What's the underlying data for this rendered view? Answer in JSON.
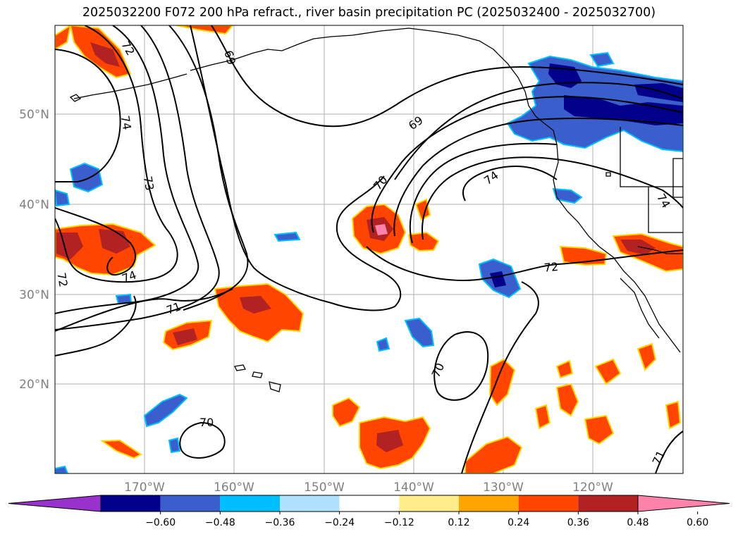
{
  "title": "2025032200 F072 200 hPa refract., river basin precipitation PC (2025032400 - 2025032700)",
  "lat_labels": [
    "50°N",
    "40°N",
    "30°N",
    "20°N"
  ],
  "lon_labels": [
    "170°W",
    "160°W",
    "150°W",
    "140°W",
    "130°W",
    "120°W"
  ],
  "contour_labels": [
    "72",
    "74",
    "73",
    "72",
    "74",
    "71",
    "69",
    "70",
    "69",
    "74",
    "74",
    "72",
    "70",
    "70",
    "71"
  ],
  "colorbar": {
    "colors": [
      "#9932cc",
      "#00008b",
      "#3a5fcd",
      "#00bfff",
      "#b0e2ff",
      "#ffffff",
      "#ffec8b",
      "#ffa500",
      "#ff4500",
      "#b22222",
      "#ff82ab"
    ],
    "tick_labels": [
      "−0.60",
      "−0.48",
      "−0.36",
      "−0.24",
      "−0.12",
      "0.12",
      "0.24",
      "0.36",
      "0.48",
      "0.60"
    ]
  }
}
